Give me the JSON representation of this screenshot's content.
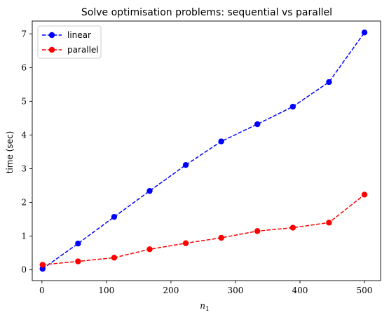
{
  "chart_data": {
    "type": "line",
    "title": "Solve optimisation problems: sequential vs parallel",
    "xlabel": "n_1",
    "ylabel": "time (sec)",
    "xlim": [
      -15,
      525
    ],
    "ylim": [
      -0.32,
      7.38
    ],
    "xticks": [
      0,
      100,
      200,
      300,
      400,
      500
    ],
    "yticks": [
      0,
      1,
      2,
      3,
      4,
      5,
      6,
      7
    ],
    "grid": false,
    "legend": "top-left",
    "x": [
      1,
      56,
      112,
      167,
      223,
      278,
      334,
      389,
      445,
      500
    ],
    "series": [
      {
        "name": "linear",
        "color": "#0000ff",
        "linestyle": "dashed",
        "marker": "circle",
        "values": [
          0.03,
          0.78,
          1.57,
          2.34,
          3.11,
          3.81,
          4.32,
          4.84,
          5.57,
          7.04
        ]
      },
      {
        "name": "parallel",
        "color": "#ff0000",
        "linestyle": "dashed",
        "marker": "circle",
        "values": [
          0.15,
          0.25,
          0.36,
          0.61,
          0.79,
          0.95,
          1.15,
          1.25,
          1.4,
          2.23
        ]
      }
    ]
  }
}
